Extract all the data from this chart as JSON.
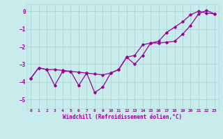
{
  "xlabel": "Windchill (Refroidissement éolien,°C)",
  "bg_color": "#c8ecec",
  "grid_color": "#b0d8d8",
  "line_color": "#990099",
  "xlim": [
    -0.5,
    23.5
  ],
  "ylim": [
    -5.5,
    0.4
  ],
  "yticks": [
    0,
    -1,
    -2,
    -3,
    -4,
    -5
  ],
  "xticks": [
    0,
    1,
    2,
    3,
    4,
    5,
    6,
    7,
    8,
    9,
    10,
    11,
    12,
    13,
    14,
    15,
    16,
    17,
    18,
    19,
    20,
    21,
    22,
    23
  ],
  "line_zigzag_x": [
    0,
    1,
    2,
    3,
    4,
    5,
    6,
    7,
    8,
    9,
    10,
    11,
    12,
    13,
    14,
    15,
    16,
    17,
    18,
    19,
    20,
    21,
    22,
    23
  ],
  "line_zigzag_y": [
    -3.8,
    -3.2,
    -3.3,
    -4.2,
    -3.4,
    -3.4,
    -4.2,
    -3.5,
    -4.6,
    -4.3,
    -3.5,
    -3.3,
    -2.6,
    -3.0,
    -2.5,
    -1.8,
    -1.8,
    -1.75,
    -1.7,
    -1.3,
    -0.8,
    -0.15,
    0.05,
    -0.15
  ],
  "line_smooth_x": [
    0,
    1,
    2,
    3,
    4,
    5,
    6,
    7,
    8,
    9,
    10,
    11,
    12,
    13,
    14,
    15,
    16,
    17,
    18,
    19,
    20,
    21,
    22,
    23
  ],
  "line_smooth_y": [
    -3.8,
    -3.2,
    -3.3,
    -3.3,
    -3.35,
    -3.4,
    -3.45,
    -3.5,
    -3.55,
    -3.6,
    -3.5,
    -3.3,
    -2.6,
    -2.5,
    -1.9,
    -1.8,
    -1.7,
    -1.2,
    -0.9,
    -0.6,
    -0.2,
    0.0,
    -0.1,
    -0.15
  ]
}
